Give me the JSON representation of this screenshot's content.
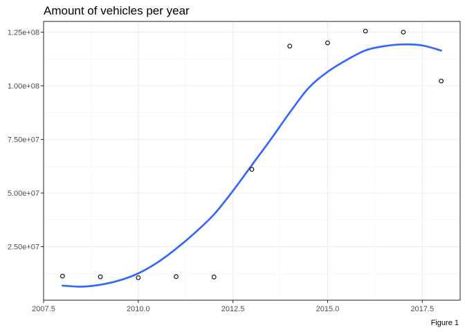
{
  "chart_data": {
    "type": "scatter",
    "title": "Amount of vehicles per year",
    "caption": "Figure 1",
    "xlabel": "",
    "ylabel": "",
    "xlim": [
      2007.5,
      2018.5
    ],
    "ylim": [
      0,
      130000000
    ],
    "x_ticks": [
      2007.5,
      2010.0,
      2012.5,
      2015.0,
      2017.5
    ],
    "x_tick_labels": [
      "2007.5",
      "2010.0",
      "2012.5",
      "2015.0",
      "2017.5"
    ],
    "y_ticks": [
      25000000,
      50000000,
      75000000,
      100000000,
      125000000
    ],
    "y_tick_labels": [
      "2.50e+07",
      "5.00e+07",
      "7.50e+07",
      "1.00e+08",
      "1.25e+08"
    ],
    "grid": true,
    "points": {
      "x": [
        2008,
        2009,
        2010,
        2011,
        2012,
        2013,
        2014,
        2015,
        2016,
        2017,
        2018
      ],
      "y": [
        11200000,
        10900000,
        10500000,
        11000000,
        10800000,
        61000000,
        118500000,
        120000000,
        125500000,
        125000000,
        102200000
      ]
    },
    "smooth": {
      "x": [
        2008,
        2008.5,
        2009,
        2009.5,
        2010,
        2010.5,
        2011,
        2011.5,
        2012,
        2012.5,
        2013,
        2013.5,
        2014,
        2014.5,
        2015,
        2015.5,
        2016,
        2016.5,
        2017,
        2017.5,
        2018
      ],
      "y": [
        6800000,
        6300000,
        7200000,
        9200000,
        12500000,
        17500000,
        24000000,
        31500000,
        40000000,
        51000000,
        63000000,
        75000000,
        87500000,
        99000000,
        106500000,
        112000000,
        116500000,
        118500000,
        119300000,
        118800000,
        116400000
      ]
    },
    "colors": {
      "smooth_line": "#3366ff",
      "points": "#000000"
    }
  }
}
